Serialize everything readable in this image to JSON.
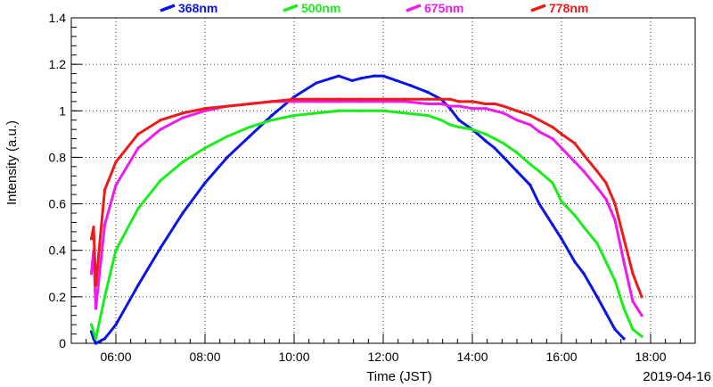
{
  "chart_data": {
    "type": "scatter",
    "title": "",
    "xlabel": "Time (JST)",
    "ylabel": "Intensity (a.u.)",
    "date_label": "2019-04-16",
    "xlim": [
      5.0,
      19.0
    ],
    "ylim": [
      0,
      1.4
    ],
    "x_unit": "hours JST",
    "grid": true,
    "legend_position": "top",
    "x_ticks": [
      {
        "value": 6,
        "label": "06:00"
      },
      {
        "value": 8,
        "label": "08:00"
      },
      {
        "value": 10,
        "label": "10:00"
      },
      {
        "value": 12,
        "label": "12:00"
      },
      {
        "value": 14,
        "label": "14:00"
      },
      {
        "value": 16,
        "label": "16:00"
      },
      {
        "value": 18,
        "label": "18:00"
      }
    ],
    "y_ticks": [
      {
        "value": 0,
        "label": "0"
      },
      {
        "value": 0.2,
        "label": "0.2"
      },
      {
        "value": 0.4,
        "label": "0.4"
      },
      {
        "value": 0.6,
        "label": "0.6"
      },
      {
        "value": 0.8,
        "label": "0.8"
      },
      {
        "value": 1.0,
        "label": "1"
      },
      {
        "value": 1.2,
        "label": "1.2"
      },
      {
        "value": 1.4,
        "label": "1.4"
      }
    ],
    "series": [
      {
        "name": "368nm",
        "color": "#0a14e6",
        "x": [
          5.45,
          5.5,
          5.55,
          5.75,
          6.0,
          6.5,
          7.0,
          7.5,
          8.0,
          8.5,
          9.0,
          9.5,
          10.0,
          10.5,
          11.0,
          11.3,
          11.5,
          11.8,
          12.0,
          12.3,
          12.6,
          13.0,
          13.3,
          13.5,
          13.7,
          14.0,
          14.3,
          14.5,
          14.7,
          15.0,
          15.3,
          15.5,
          15.8,
          16.0,
          16.3,
          16.5,
          16.8,
          17.0,
          17.2,
          17.4
        ],
        "y": [
          0.05,
          0.02,
          0.0,
          0.02,
          0.08,
          0.25,
          0.41,
          0.56,
          0.69,
          0.8,
          0.89,
          0.98,
          1.06,
          1.12,
          1.15,
          1.13,
          1.14,
          1.15,
          1.15,
          1.13,
          1.11,
          1.08,
          1.05,
          1.01,
          0.96,
          0.92,
          0.87,
          0.84,
          0.8,
          0.74,
          0.68,
          0.6,
          0.51,
          0.45,
          0.35,
          0.3,
          0.2,
          0.13,
          0.06,
          0.02
        ]
      },
      {
        "name": "500nm",
        "color": "#1aee1a",
        "x": [
          5.45,
          5.5,
          5.55,
          5.75,
          6.0,
          6.5,
          7.0,
          7.5,
          8.0,
          8.5,
          9.0,
          9.5,
          10.0,
          10.5,
          11.0,
          11.5,
          12.0,
          12.5,
          13.0,
          13.3,
          13.5,
          13.7,
          14.0,
          14.3,
          14.5,
          14.7,
          15.0,
          15.3,
          15.5,
          15.8,
          16.0,
          16.3,
          16.5,
          16.8,
          17.0,
          17.2,
          17.4,
          17.6,
          17.8
        ],
        "y": [
          0.08,
          0.05,
          0.02,
          0.2,
          0.4,
          0.58,
          0.7,
          0.78,
          0.84,
          0.89,
          0.93,
          0.96,
          0.98,
          0.99,
          1.0,
          1.0,
          1.0,
          0.99,
          0.98,
          0.96,
          0.94,
          0.93,
          0.92,
          0.9,
          0.88,
          0.86,
          0.82,
          0.77,
          0.74,
          0.69,
          0.61,
          0.55,
          0.5,
          0.43,
          0.35,
          0.27,
          0.15,
          0.06,
          0.03
        ]
      },
      {
        "name": "675nm",
        "color": "#ee1aee",
        "x": [
          5.45,
          5.5,
          5.55,
          5.75,
          6.0,
          6.5,
          7.0,
          7.5,
          8.0,
          8.5,
          9.0,
          9.5,
          10.0,
          10.5,
          11.0,
          11.5,
          12.0,
          12.5,
          13.0,
          13.3,
          13.5,
          13.7,
          14.0,
          14.3,
          14.5,
          14.7,
          15.0,
          15.3,
          15.5,
          15.8,
          16.0,
          16.3,
          16.5,
          16.8,
          17.0,
          17.2,
          17.4,
          17.6,
          17.8
        ],
        "y": [
          0.3,
          0.4,
          0.15,
          0.51,
          0.68,
          0.84,
          0.92,
          0.97,
          1.0,
          1.02,
          1.03,
          1.04,
          1.04,
          1.04,
          1.04,
          1.04,
          1.04,
          1.04,
          1.03,
          1.03,
          1.02,
          1.02,
          1.01,
          1.01,
          1.0,
          0.99,
          0.96,
          0.94,
          0.91,
          0.88,
          0.84,
          0.78,
          0.74,
          0.67,
          0.62,
          0.53,
          0.35,
          0.18,
          0.12
        ]
      },
      {
        "name": "778nm",
        "color": "#ee1a1a",
        "x": [
          5.45,
          5.5,
          5.55,
          5.75,
          6.0,
          6.5,
          7.0,
          7.5,
          8.0,
          8.5,
          9.0,
          9.5,
          10.0,
          10.5,
          11.0,
          11.5,
          12.0,
          12.5,
          13.0,
          13.3,
          13.5,
          13.7,
          14.0,
          14.3,
          14.5,
          14.7,
          15.0,
          15.3,
          15.5,
          15.8,
          16.0,
          16.3,
          16.5,
          16.8,
          17.0,
          17.2,
          17.4,
          17.6,
          17.8
        ],
        "y": [
          0.45,
          0.5,
          0.25,
          0.66,
          0.78,
          0.9,
          0.96,
          0.99,
          1.01,
          1.02,
          1.03,
          1.04,
          1.05,
          1.05,
          1.05,
          1.05,
          1.05,
          1.05,
          1.05,
          1.05,
          1.05,
          1.04,
          1.04,
          1.03,
          1.03,
          1.02,
          1.0,
          0.98,
          0.96,
          0.93,
          0.9,
          0.86,
          0.81,
          0.74,
          0.69,
          0.6,
          0.45,
          0.3,
          0.2
        ]
      }
    ]
  }
}
